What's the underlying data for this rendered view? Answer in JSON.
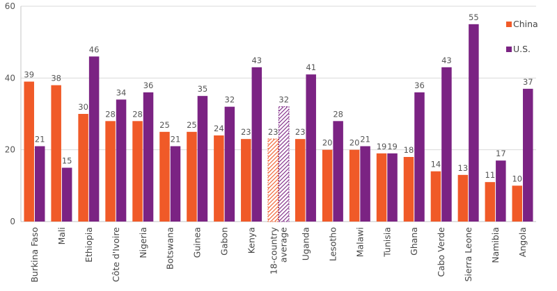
{
  "chart_data": {
    "type": "bar",
    "title": "",
    "xlabel": "",
    "ylabel": "",
    "ylim": [
      0,
      60
    ],
    "yticks": [
      0,
      20,
      40,
      60
    ],
    "legend_position": "top-right",
    "categories": [
      "Burkina Faso",
      "Mali",
      "Ethiopia",
      "Côte d'Ivoire",
      "Nigeria",
      "Botswana",
      "Guinea",
      "Gabon",
      "Kenya",
      "18-country average",
      "Uganda",
      "Lesotho",
      "Malawi",
      "Tunisia",
      "Ghana",
      "Cabo Verde",
      "Sierra Leone",
      "Namibia",
      "Angola"
    ],
    "category_lines": [
      [
        "Burkina Faso"
      ],
      [
        "Mali"
      ],
      [
        "Ethiopia"
      ],
      [
        "Côte d'Ivoire"
      ],
      [
        "Nigeria"
      ],
      [
        "Botswana"
      ],
      [
        "Guinea"
      ],
      [
        "Gabon"
      ],
      [
        "Kenya"
      ],
      [
        "18-country",
        "average"
      ],
      [
        "Uganda"
      ],
      [
        "Lesotho"
      ],
      [
        "Malawi"
      ],
      [
        "Tunisia"
      ],
      [
        "Ghana"
      ],
      [
        "Cabo Verde"
      ],
      [
        "Sierra Leone"
      ],
      [
        "Namibia"
      ],
      [
        "Angola"
      ]
    ],
    "highlight_category": "18-country average",
    "series": [
      {
        "name": "China",
        "color": "#f05a28",
        "values": [
          39,
          38,
          30,
          28,
          28,
          25,
          25,
          24,
          23,
          23,
          23,
          20,
          20,
          19,
          18,
          14,
          13,
          11,
          10
        ]
      },
      {
        "name": "U.S.",
        "color": "#7b2383",
        "values": [
          21,
          15,
          46,
          34,
          36,
          21,
          35,
          32,
          43,
          32,
          41,
          28,
          21,
          19,
          36,
          43,
          55,
          17,
          37
        ]
      }
    ]
  }
}
